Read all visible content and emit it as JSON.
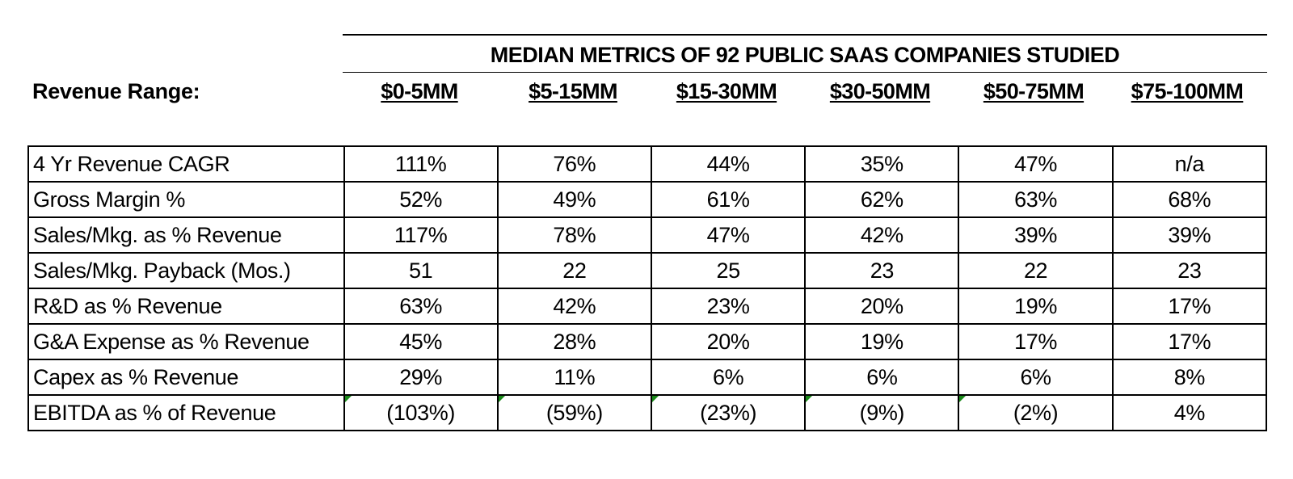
{
  "title": "MEDIAN METRICS OF 92 PUBLIC SAAS COMPANIES STUDIED",
  "revenue_range_label": "Revenue Range:",
  "ranges": [
    "$0-5MM",
    "$5-15MM",
    "$15-30MM",
    "$30-50MM",
    "$50-75MM",
    "$75-100MM"
  ],
  "rows": [
    {
      "label": "4 Yr Revenue CAGR",
      "values": [
        "111%",
        "76%",
        "44%",
        "35%",
        "47%",
        "n/a"
      ]
    },
    {
      "label": "Gross Margin %",
      "values": [
        "52%",
        "49%",
        "61%",
        "62%",
        "63%",
        "68%"
      ]
    },
    {
      "label": "Sales/Mkg. as % Revenue",
      "values": [
        "117%",
        "78%",
        "47%",
        "42%",
        "39%",
        "39%"
      ]
    },
    {
      "label": "Sales/Mkg. Payback (Mos.)",
      "values": [
        "51",
        "22",
        "25",
        "23",
        "22",
        "23"
      ]
    },
    {
      "label": "R&D as % Revenue",
      "values": [
        "63%",
        "42%",
        "23%",
        "20%",
        "19%",
        "17%"
      ]
    },
    {
      "label": "G&A Expense as % Revenue",
      "values": [
        "45%",
        "28%",
        "20%",
        "19%",
        "17%",
        "17%"
      ]
    },
    {
      "label": "Capex as % Revenue",
      "values": [
        "29%",
        "11%",
        "6%",
        "6%",
        "6%",
        "8%"
      ]
    },
    {
      "label": "EBITDA as % of Revenue",
      "values": [
        "(103%)",
        "(59%)",
        "(23%)",
        "(9%)",
        "(2%)",
        "4%"
      ]
    }
  ],
  "colors": {
    "text": "#000000",
    "border": "#000000",
    "cell_indicator": "#1a8a1a"
  }
}
